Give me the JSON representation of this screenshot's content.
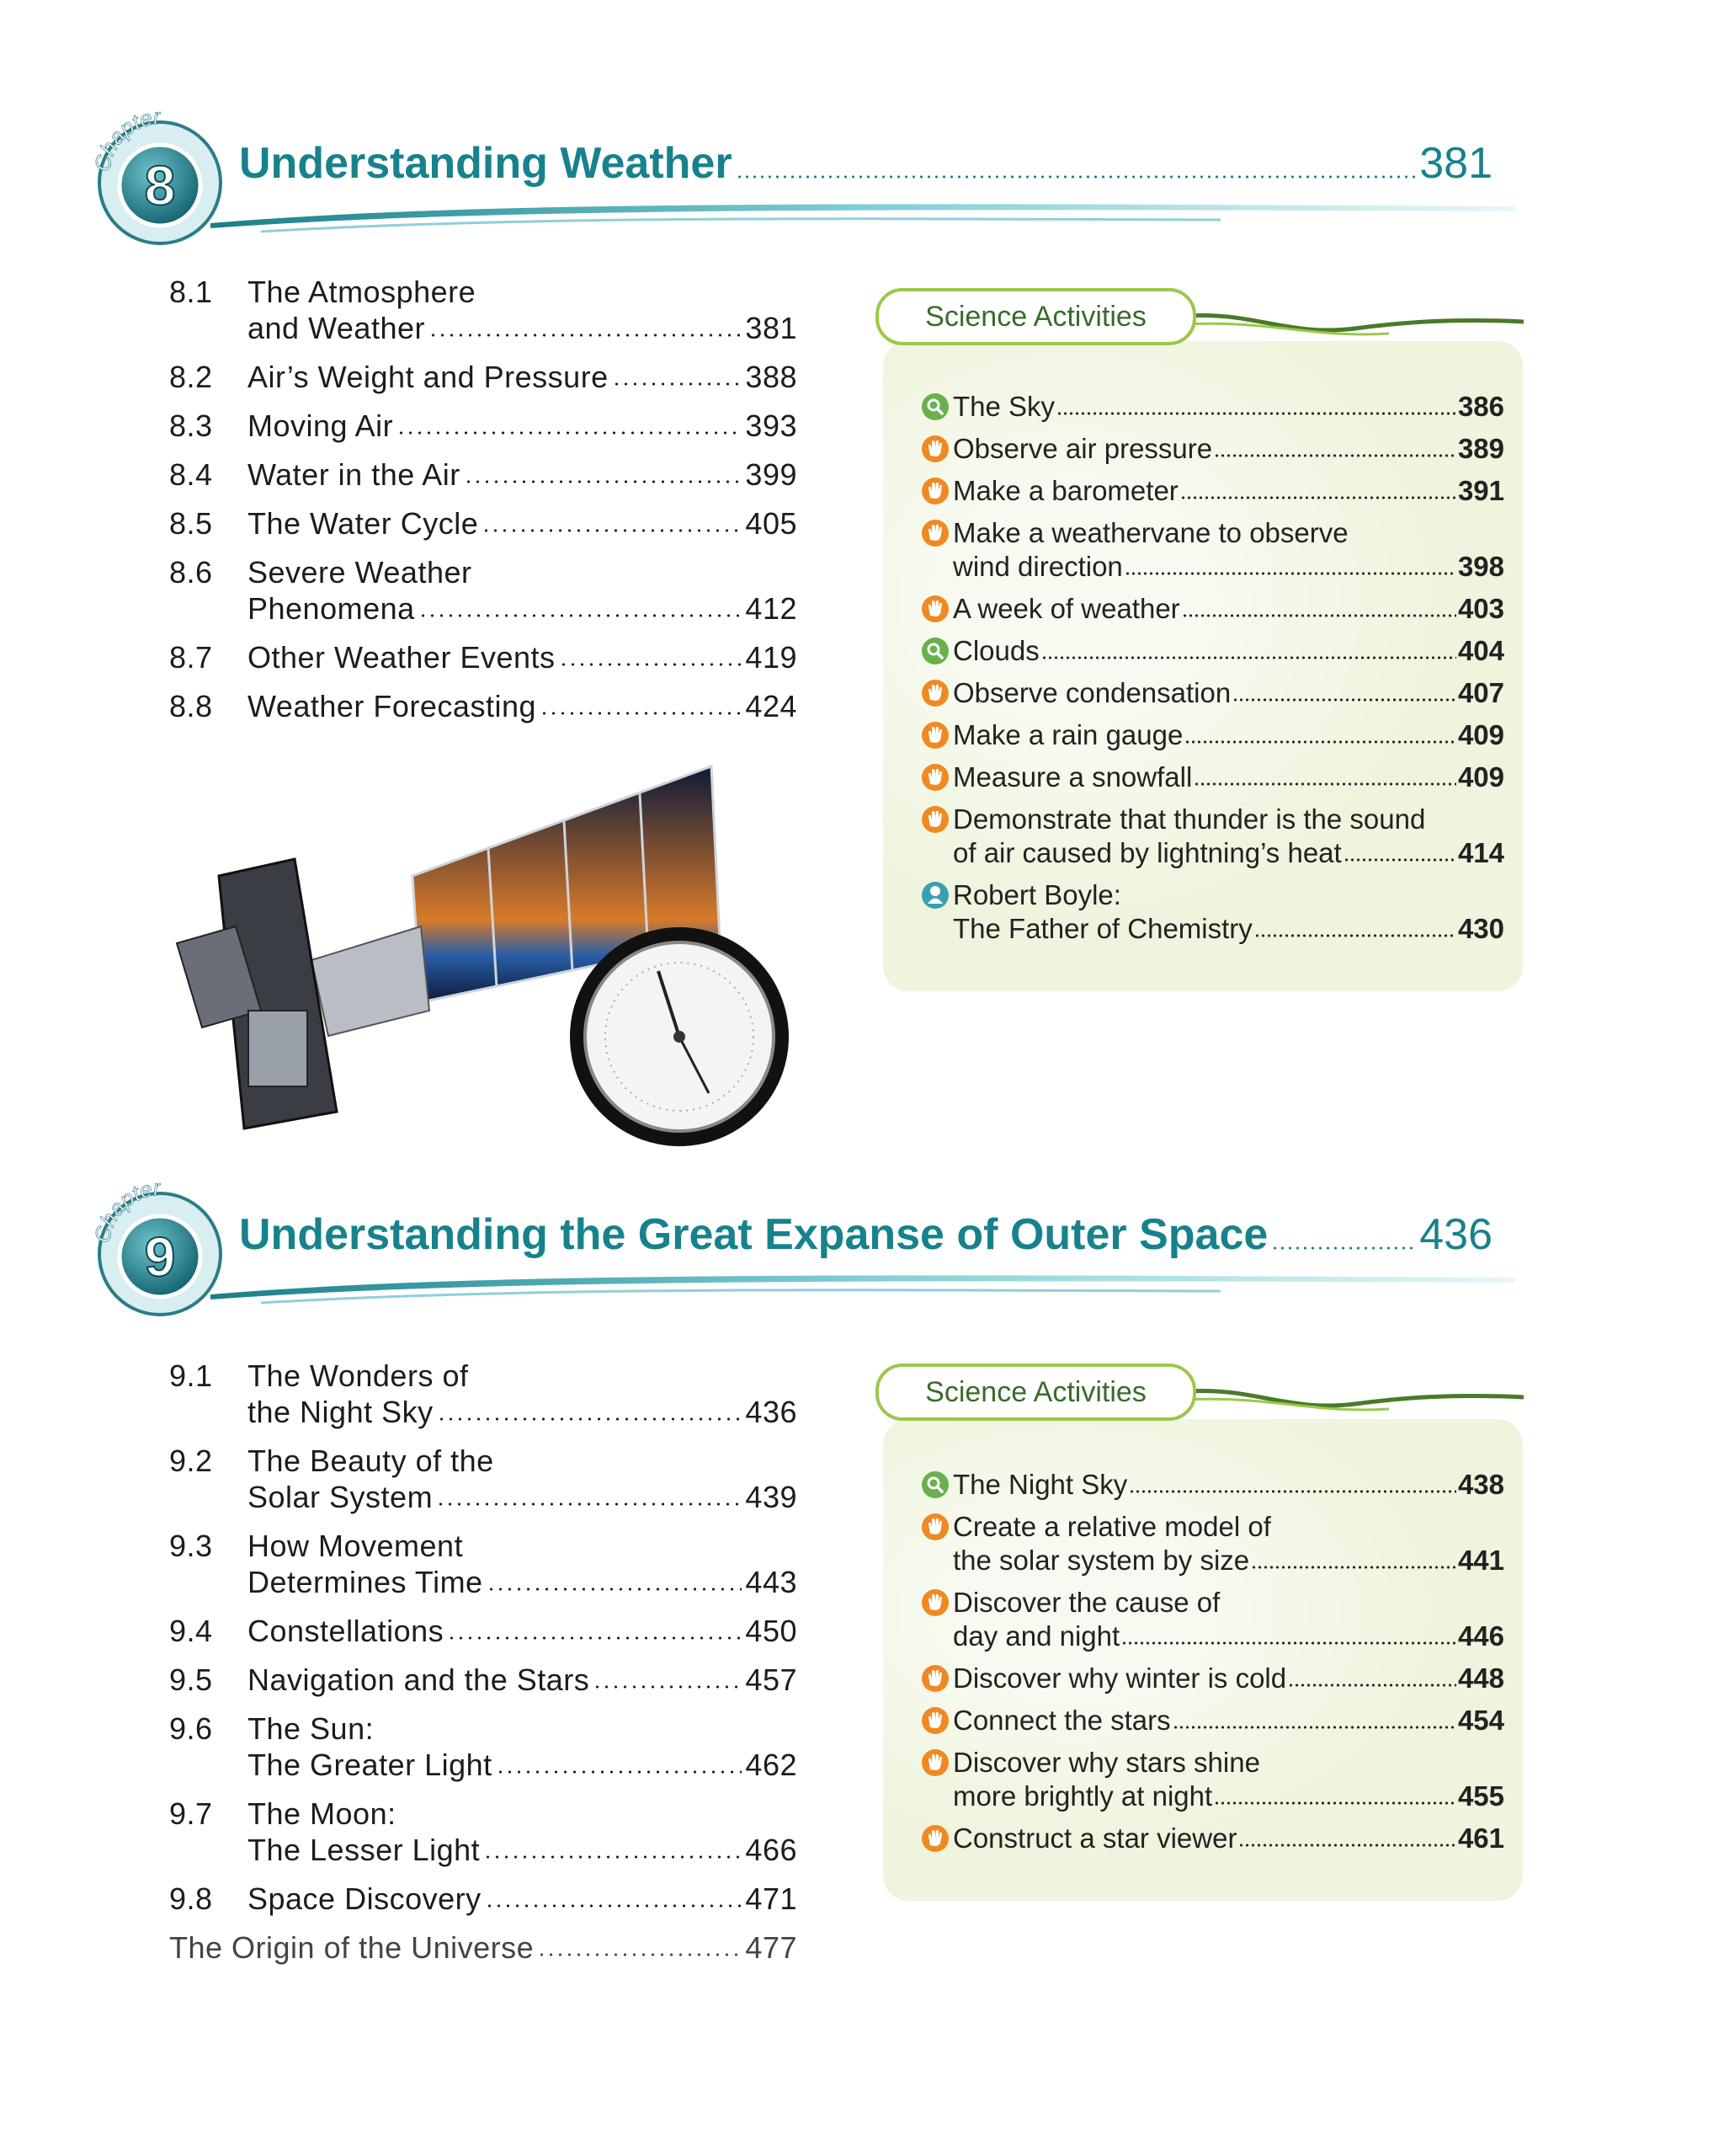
{
  "chapters": [
    {
      "badge": "Chapter",
      "number": "8",
      "title": "Understanding Weather",
      "page": "381",
      "sections": [
        {
          "number": "8.1",
          "lines": [
            "The Atmosphere",
            "and Weather"
          ],
          "page": "381"
        },
        {
          "number": "8.2",
          "lines": [
            "Air’s Weight and Pressure"
          ],
          "page": "388"
        },
        {
          "number": "8.3",
          "lines": [
            "Moving Air"
          ],
          "page": "393"
        },
        {
          "number": "8.4",
          "lines": [
            "Water in the Air"
          ],
          "page": "399"
        },
        {
          "number": "8.5",
          "lines": [
            "The Water Cycle"
          ],
          "page": "405"
        },
        {
          "number": "8.6",
          "lines": [
            "Severe Weather",
            "Phenomena"
          ],
          "page": "412"
        },
        {
          "number": "8.7",
          "lines": [
            "Other Weather Events"
          ],
          "page": "419"
        },
        {
          "number": "8.8",
          "lines": [
            "Weather Forecasting"
          ],
          "page": "424"
        }
      ],
      "activities": {
        "heading": "Science Activities",
        "items": [
          {
            "icon": "search",
            "lines": [
              "The Sky"
            ],
            "page": "386"
          },
          {
            "icon": "hand",
            "lines": [
              "Observe air pressure"
            ],
            "page": "389"
          },
          {
            "icon": "hand",
            "lines": [
              "Make a barometer"
            ],
            "page": "391"
          },
          {
            "icon": "hand",
            "lines": [
              "Make a weathervane to observe",
              "wind direction"
            ],
            "page": "398"
          },
          {
            "icon": "hand",
            "lines": [
              "A week of weather"
            ],
            "page": "403"
          },
          {
            "icon": "search",
            "lines": [
              "Clouds"
            ],
            "page": "404"
          },
          {
            "icon": "hand",
            "lines": [
              "Observe condensation"
            ],
            "page": "407"
          },
          {
            "icon": "hand",
            "lines": [
              "Make a rain gauge"
            ],
            "page": "409"
          },
          {
            "icon": "hand",
            "lines": [
              "Measure a snowfall"
            ],
            "page": "409"
          },
          {
            "icon": "hand",
            "lines": [
              "Demonstrate that thunder is the sound",
              "of air caused by lightning’s heat"
            ],
            "page": "414"
          },
          {
            "icon": "person",
            "lines": [
              "Robert Boyle:",
              "The Father of Chemistry"
            ],
            "page": "430"
          }
        ]
      }
    },
    {
      "badge": "Chapter",
      "number": "9",
      "title": "Understanding the Great Expanse of Outer Space",
      "page": "436",
      "sections": [
        {
          "number": "9.1",
          "lines": [
            "The Wonders of",
            "the Night Sky"
          ],
          "page": "436"
        },
        {
          "number": "9.2",
          "lines": [
            "The Beauty of the",
            "Solar System"
          ],
          "page": "439"
        },
        {
          "number": "9.3",
          "lines": [
            "How Movement",
            "Determines Time"
          ],
          "page": "443"
        },
        {
          "number": "9.4",
          "lines": [
            "Constellations"
          ],
          "page": "450"
        },
        {
          "number": "9.5",
          "lines": [
            "Navigation and the Stars"
          ],
          "page": "457"
        },
        {
          "number": "9.6",
          "lines": [
            "The Sun:",
            "The Greater Light"
          ],
          "page": "462"
        },
        {
          "number": "9.7",
          "lines": [
            "The Moon:",
            "The Lesser Light"
          ],
          "page": "466"
        },
        {
          "number": "9.8",
          "lines": [
            "Space Discovery"
          ],
          "page": "471"
        },
        {
          "lines": [
            "The Origin of the Universe"
          ],
          "page": "477"
        }
      ],
      "activities": {
        "heading": "Science Activities",
        "items": [
          {
            "icon": "search",
            "lines": [
              "The Night Sky"
            ],
            "page": "438"
          },
          {
            "icon": "hand",
            "lines": [
              "Create a relative model of",
              "the solar system by size"
            ],
            "page": "441"
          },
          {
            "icon": "hand",
            "lines": [
              "Discover the cause of",
              "day and night"
            ],
            "page": "446"
          },
          {
            "icon": "hand",
            "lines": [
              "Discover why winter is cold"
            ],
            "page": "448"
          },
          {
            "icon": "hand",
            "lines": [
              "Connect the stars"
            ],
            "page": "454"
          },
          {
            "icon": "hand",
            "lines": [
              "Discover why stars shine",
              "more brightly at night"
            ],
            "page": "455"
          },
          {
            "icon": "hand",
            "lines": [
              "Construct a star viewer"
            ],
            "page": "461"
          }
        ]
      }
    }
  ]
}
